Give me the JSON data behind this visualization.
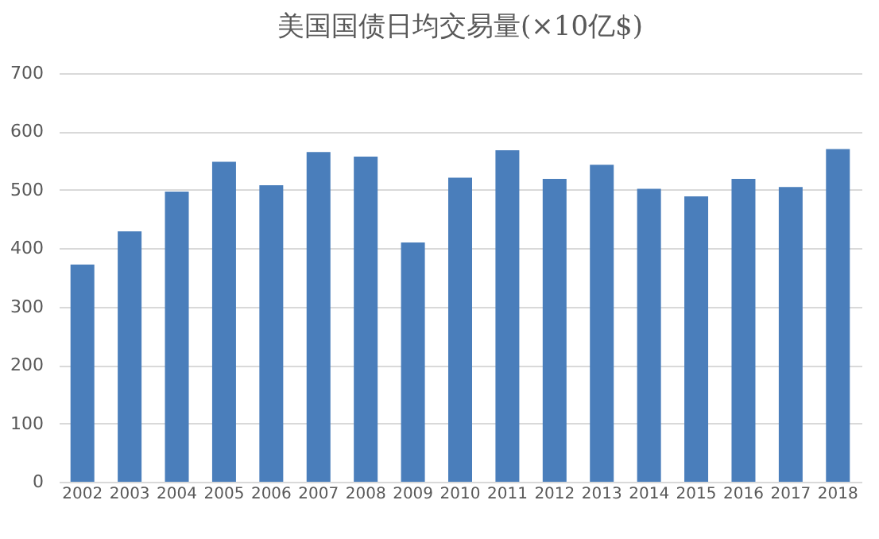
{
  "chart_data": {
    "type": "bar",
    "title": "美国国债日均交易量(×10亿$)",
    "categories": [
      "2002",
      "2003",
      "2004",
      "2005",
      "2006",
      "2007",
      "2008",
      "2009",
      "2010",
      "2011",
      "2012",
      "2013",
      "2014",
      "2015",
      "2016",
      "2017",
      "2018"
    ],
    "values": [
      372,
      429,
      497,
      548,
      508,
      565,
      557,
      410,
      521,
      568,
      519,
      543,
      502,
      489,
      519,
      505,
      570
    ],
    "color": "#4a7ebb",
    "ylim": [
      0,
      700
    ],
    "yticks": [
      0,
      100,
      200,
      300,
      400,
      500,
      600,
      700
    ],
    "grid": "y"
  }
}
